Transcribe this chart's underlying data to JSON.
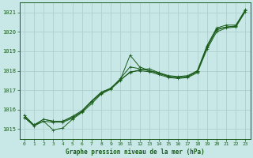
{
  "title": "Graphe pression niveau de la mer (hPa)",
  "bg_color": "#c8e8e8",
  "grid_color": "#b0d0d0",
  "line_color": "#1a5c1a",
  "xlim": [
    -0.5,
    23.5
  ],
  "ylim": [
    1014.5,
    1021.5
  ],
  "yticks": [
    1015,
    1016,
    1017,
    1018,
    1019,
    1020,
    1021
  ],
  "xticks": [
    0,
    1,
    2,
    3,
    4,
    5,
    6,
    7,
    8,
    9,
    10,
    11,
    12,
    13,
    14,
    15,
    16,
    17,
    18,
    19,
    20,
    21,
    22,
    23
  ],
  "series": [
    {
      "y": [
        1015.7,
        1015.2,
        1015.5,
        1015.4,
        1015.4,
        1015.6,
        1015.9,
        1016.4,
        1016.85,
        1017.1,
        1017.55,
        1018.8,
        1018.2,
        1018.0,
        1017.9,
        1017.75,
        1017.7,
        1017.75,
        1018.0,
        1019.3,
        1020.2,
        1020.35,
        1020.35,
        1021.15
      ],
      "marker": "+"
    },
    {
      "y": [
        1015.7,
        1015.2,
        1015.5,
        1015.4,
        1015.4,
        1015.65,
        1015.95,
        1016.45,
        1016.9,
        1017.1,
        1017.6,
        1018.2,
        1018.1,
        1018.0,
        1017.85,
        1017.7,
        1017.65,
        1017.7,
        1017.95,
        1019.2,
        1020.15,
        1020.25,
        1020.3,
        1021.1
      ],
      "marker": "+"
    },
    {
      "y": [
        1015.6,
        1015.15,
        1015.4,
        1014.95,
        1015.05,
        1015.5,
        1015.85,
        1016.3,
        1016.8,
        1017.05,
        1017.5,
        1017.95,
        1018.0,
        1017.95,
        1017.8,
        1017.65,
        1017.6,
        1017.65,
        1017.9,
        1019.1,
        1020.0,
        1020.2,
        1020.25,
        1021.05
      ],
      "marker": "+"
    },
    {
      "y": [
        1015.6,
        1015.2,
        1015.4,
        1015.35,
        1015.35,
        1015.55,
        1015.9,
        1016.4,
        1016.85,
        1017.1,
        1017.55,
        1017.9,
        1018.05,
        1018.1,
        1017.9,
        1017.7,
        1017.65,
        1017.7,
        1018.0,
        1019.2,
        1020.1,
        1020.25,
        1020.3,
        1021.1
      ],
      "marker": "+"
    }
  ]
}
